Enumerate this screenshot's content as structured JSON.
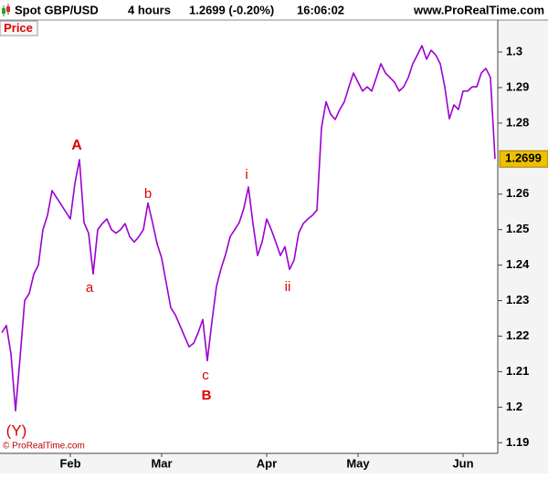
{
  "header": {
    "instrument": "Spot GBP/USD",
    "timeframe": "4 hours",
    "quote": "1.2699 (-0.20%)",
    "time": "16:06:02",
    "site": "www.ProRealTime.com"
  },
  "footer": "© ProRealTime.com",
  "chart_data": {
    "type": "line",
    "categories": [
      null,
      null,
      null,
      null,
      null,
      null,
      null,
      null,
      null,
      null,
      null,
      null,
      null,
      null,
      null,
      "Feb",
      null,
      null,
      null,
      null,
      null,
      null,
      null,
      null,
      null,
      null,
      null,
      null,
      null,
      null,
      null,
      null,
      null,
      null,
      null,
      "Mar",
      null,
      null,
      null,
      null,
      null,
      null,
      null,
      null,
      null,
      null,
      null,
      null,
      null,
      null,
      null,
      null,
      null,
      null,
      null,
      null,
      null,
      null,
      "Apr",
      null,
      null,
      null,
      null,
      null,
      null,
      null,
      null,
      null,
      null,
      null,
      null,
      null,
      null,
      null,
      null,
      null,
      null,
      null,
      "May",
      null,
      null,
      null,
      null,
      null,
      null,
      null,
      null,
      null,
      null,
      null,
      null,
      null,
      null,
      null,
      null,
      null,
      null,
      null,
      null,
      null,
      null,
      "Jun",
      null,
      null,
      null,
      null,
      null,
      null,
      null
    ],
    "series": [
      {
        "name": "Price",
        "color": "#9b00d0",
        "values": [
          1.221,
          1.223,
          1.215,
          1.199,
          1.214,
          1.23,
          1.232,
          1.2375,
          1.24,
          1.25,
          1.254,
          1.261,
          1.259,
          1.257,
          1.255,
          1.253,
          1.263,
          1.2697,
          1.252,
          1.249,
          1.2375,
          1.25,
          1.2517,
          1.253,
          1.25,
          1.249,
          1.25,
          1.2517,
          1.248,
          1.2465,
          1.248,
          1.25,
          1.2575,
          1.252,
          1.246,
          1.242,
          1.235,
          1.228,
          1.226,
          1.223,
          1.22,
          1.217,
          1.218,
          1.221,
          1.2247,
          1.2131,
          1.224,
          1.234,
          1.239,
          1.243,
          1.248,
          1.25,
          1.252,
          1.256,
          1.262,
          1.2517,
          1.2427,
          1.2465,
          1.253,
          1.25,
          1.2465,
          1.2427,
          1.2452,
          1.2388,
          1.2414,
          1.249,
          1.2517,
          1.253,
          1.254,
          1.2555,
          1.2787,
          1.286,
          1.2825,
          1.281,
          1.2838,
          1.286,
          1.2902,
          1.2941,
          1.2915,
          1.289,
          1.2902,
          1.289,
          1.2928,
          1.2967,
          1.2941,
          1.2928,
          1.2915,
          1.289,
          1.2902,
          1.2928,
          1.2967,
          1.2992,
          1.3018,
          1.298,
          1.3005,
          1.2992,
          1.2967,
          1.2902,
          1.2812,
          1.2851,
          1.2838,
          1.289,
          1.289,
          1.2902,
          1.2902,
          1.2941,
          1.2954,
          1.2928,
          1.2699
        ]
      }
    ],
    "ylim": [
      1.187,
      1.309
    ],
    "yticks": [
      1.19,
      1.2,
      1.21,
      1.22,
      1.23,
      1.24,
      1.25,
      1.26,
      1.28,
      1.29,
      1.3
    ],
    "last_price": 1.2699,
    "annotations": [
      "A",
      "a",
      "b",
      "c",
      "B",
      "i",
      "ii",
      "(Y)"
    ]
  }
}
